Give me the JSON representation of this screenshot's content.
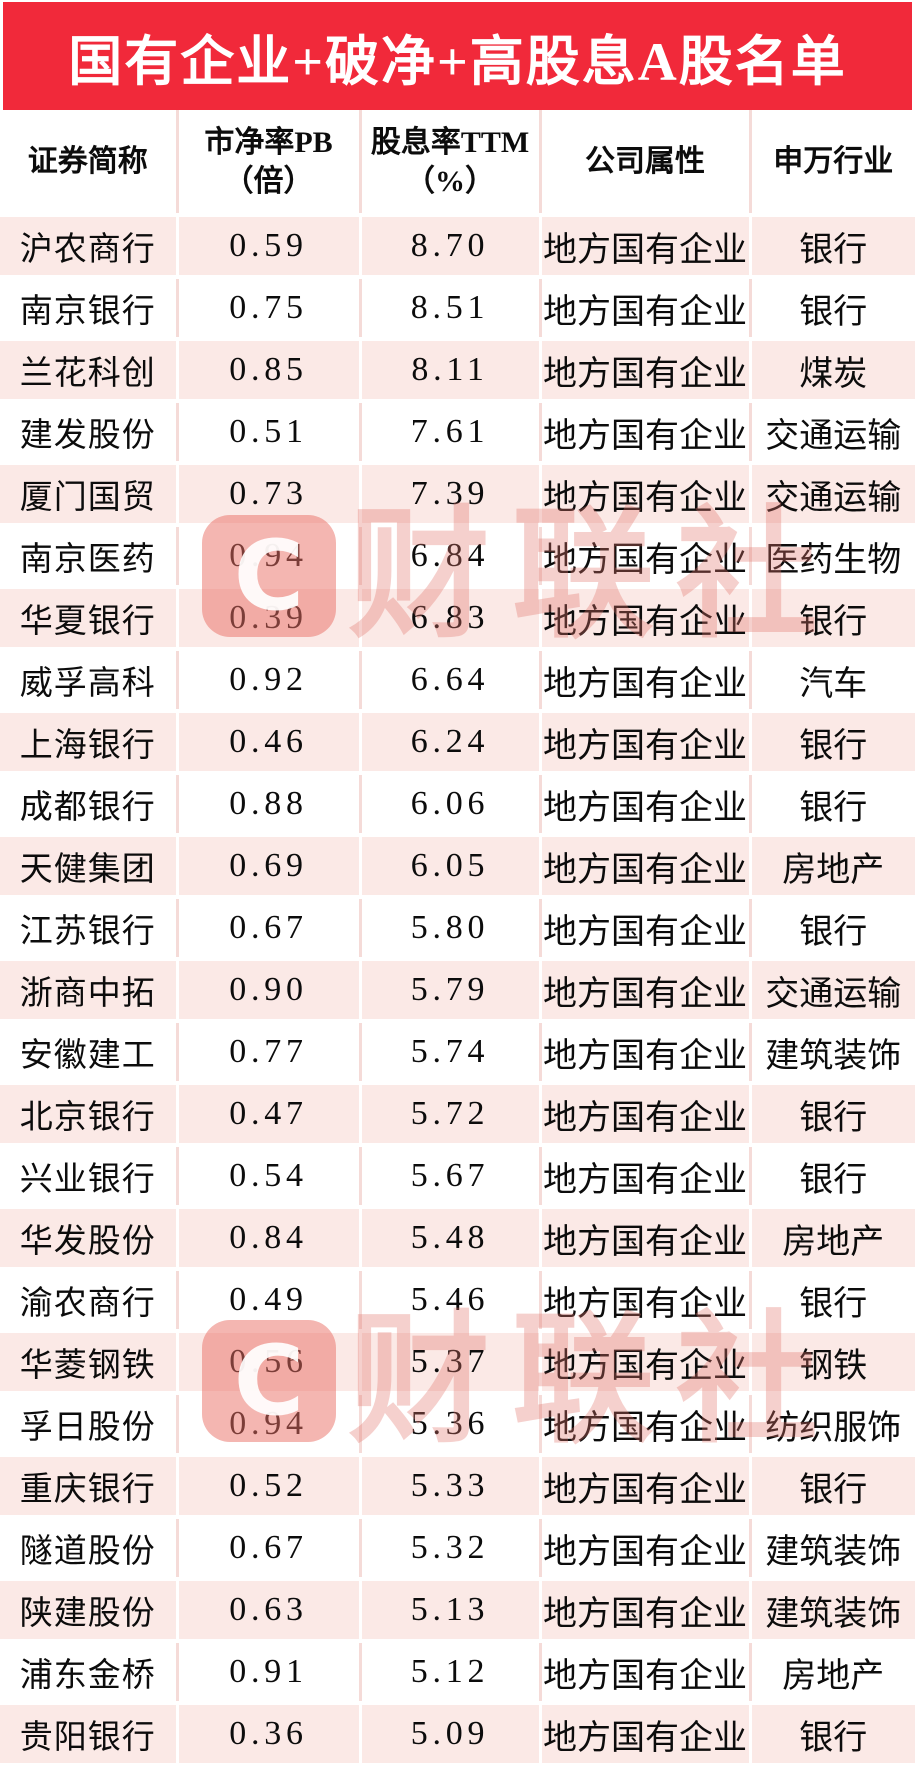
{
  "chart_data": {
    "type": "table",
    "title": "国有企业+破净+高股息A股名单",
    "columns": [
      {
        "line1": "证券简称",
        "line2": ""
      },
      {
        "line1": "市净率PB",
        "line2": "（倍）"
      },
      {
        "line1": "股息率TTM",
        "line2": "（%）"
      },
      {
        "line1": "公司属性",
        "line2": ""
      },
      {
        "line1": "申万行业",
        "line2": ""
      }
    ],
    "rows": [
      {
        "name": "沪农商行",
        "pb": "0.59",
        "dividend_ttm": "8.70",
        "attribute": "地方国有企业",
        "industry": "银行"
      },
      {
        "name": "南京银行",
        "pb": "0.75",
        "dividend_ttm": "8.51",
        "attribute": "地方国有企业",
        "industry": "银行"
      },
      {
        "name": "兰花科创",
        "pb": "0.85",
        "dividend_ttm": "8.11",
        "attribute": "地方国有企业",
        "industry": "煤炭"
      },
      {
        "name": "建发股份",
        "pb": "0.51",
        "dividend_ttm": "7.61",
        "attribute": "地方国有企业",
        "industry": "交通运输"
      },
      {
        "name": "厦门国贸",
        "pb": "0.73",
        "dividend_ttm": "7.39",
        "attribute": "地方国有企业",
        "industry": "交通运输"
      },
      {
        "name": "南京医药",
        "pb": "0.94",
        "dividend_ttm": "6.84",
        "attribute": "地方国有企业",
        "industry": "医药生物"
      },
      {
        "name": "华夏银行",
        "pb": "0.39",
        "dividend_ttm": "6.83",
        "attribute": "地方国有企业",
        "industry": "银行"
      },
      {
        "name": "威孚高科",
        "pb": "0.92",
        "dividend_ttm": "6.64",
        "attribute": "地方国有企业",
        "industry": "汽车"
      },
      {
        "name": "上海银行",
        "pb": "0.46",
        "dividend_ttm": "6.24",
        "attribute": "地方国有企业",
        "industry": "银行"
      },
      {
        "name": "成都银行",
        "pb": "0.88",
        "dividend_ttm": "6.06",
        "attribute": "地方国有企业",
        "industry": "银行"
      },
      {
        "name": "天健集团",
        "pb": "0.69",
        "dividend_ttm": "6.05",
        "attribute": "地方国有企业",
        "industry": "房地产"
      },
      {
        "name": "江苏银行",
        "pb": "0.67",
        "dividend_ttm": "5.80",
        "attribute": "地方国有企业",
        "industry": "银行"
      },
      {
        "name": "浙商中拓",
        "pb": "0.90",
        "dividend_ttm": "5.79",
        "attribute": "地方国有企业",
        "industry": "交通运输"
      },
      {
        "name": "安徽建工",
        "pb": "0.77",
        "dividend_ttm": "5.74",
        "attribute": "地方国有企业",
        "industry": "建筑装饰"
      },
      {
        "name": "北京银行",
        "pb": "0.47",
        "dividend_ttm": "5.72",
        "attribute": "地方国有企业",
        "industry": "银行"
      },
      {
        "name": "兴业银行",
        "pb": "0.54",
        "dividend_ttm": "5.67",
        "attribute": "地方国有企业",
        "industry": "银行"
      },
      {
        "name": "华发股份",
        "pb": "0.84",
        "dividend_ttm": "5.48",
        "attribute": "地方国有企业",
        "industry": "房地产"
      },
      {
        "name": "渝农商行",
        "pb": "0.49",
        "dividend_ttm": "5.46",
        "attribute": "地方国有企业",
        "industry": "银行"
      },
      {
        "name": "华菱钢铁",
        "pb": "0.56",
        "dividend_ttm": "5.37",
        "attribute": "地方国有企业",
        "industry": "钢铁"
      },
      {
        "name": "孚日股份",
        "pb": "0.94",
        "dividend_ttm": "5.36",
        "attribute": "地方国有企业",
        "industry": "纺织服饰"
      },
      {
        "name": "重庆银行",
        "pb": "0.52",
        "dividend_ttm": "5.33",
        "attribute": "地方国有企业",
        "industry": "银行"
      },
      {
        "name": "隧道股份",
        "pb": "0.67",
        "dividend_ttm": "5.32",
        "attribute": "地方国有企业",
        "industry": "建筑装饰"
      },
      {
        "name": "陕建股份",
        "pb": "0.63",
        "dividend_ttm": "5.13",
        "attribute": "地方国有企业",
        "industry": "建筑装饰"
      },
      {
        "name": "浦东金桥",
        "pb": "0.91",
        "dividend_ttm": "5.12",
        "attribute": "地方国有企业",
        "industry": "房地产"
      },
      {
        "name": "贵阳银行",
        "pb": "0.36",
        "dividend_ttm": "5.09",
        "attribute": "地方国有企业",
        "industry": "银行"
      }
    ]
  },
  "watermark": {
    "logo_letter": "C",
    "text": "财联社"
  },
  "colors": {
    "banner_red": "#f1293a",
    "row_pink": "#fbe9e6",
    "divider_pink": "#f5dbd8",
    "watermark_pink": "#f4bab5",
    "text_black": "#0c0c0c"
  }
}
